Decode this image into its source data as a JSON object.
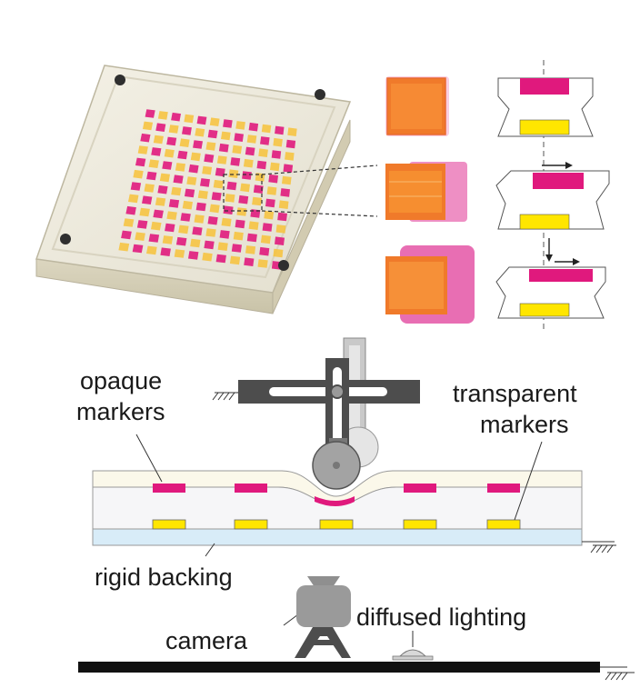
{
  "labels": {
    "opaque_markers_line1": "opaque",
    "opaque_markers_line2": "markers",
    "transparent_markers_line1": "transparent",
    "transparent_markers_line2": "markers",
    "rigid_backing": "rigid backing",
    "camera": "camera",
    "diffused_lighting": "diffused lighting"
  },
  "colors": {
    "opaque_marker": "#e0197d",
    "transparent_marker": "#ffe600",
    "backing": "#d8ecf8",
    "arm": "#4d4d4d",
    "camera": "#9a9a9a",
    "table": "#111111"
  }
}
